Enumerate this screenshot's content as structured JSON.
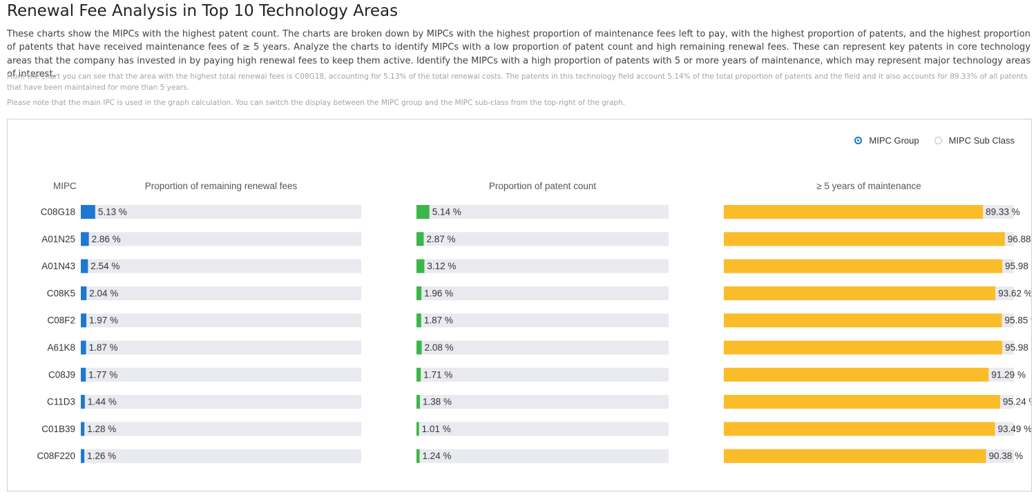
{
  "page": {
    "title": "Renewal Fee Analysis in Top 10 Technology Areas",
    "description": "These charts show the MIPCs with the highest patent count. The charts are broken down by MIPCs with the highest proportion of maintenance fees left to pay, with the highest proportion of patents, and the highest proportion of patents that have received maintenance fees of ≥ 5 years. Analyze the charts to identify MIPCs with a low proportion of patent count and high remaining renewal fees. These can represent key patents in core technology areas that the company has invested in by paying high renewal fees to keep them active. Identify the MIPCs with a high proportion of patents with 5 or more years of maintenance, which may represent major technology areas of interest.",
    "note1": "From the chart you can see that the area with the highest total renewal fees is C08G18, accounting for 5.13% of the total renewal costs. The patents in this technology field account 5.14% of the total proportion of patents and the field and it also accounts for 89.33% of all patents that have been maintained for more than 5 years.",
    "note2": "Please note that the main IPC is used in the graph calculation. You can switch the display between the MIPC group and the MIPC sub-class from the top-right of the graph."
  },
  "toggle": {
    "options": [
      "MIPC Group",
      "MIPC Sub Class"
    ],
    "selected": "MIPC Group"
  },
  "chart_data": {
    "type": "bar",
    "orientation": "horizontal",
    "category_label": "MIPC",
    "categories": [
      "C08G18",
      "A01N25",
      "A01N43",
      "C08K5",
      "C08F2",
      "A61K8",
      "C08J9",
      "C11D3",
      "C01B39",
      "C08F220"
    ],
    "value_suffix": " %",
    "series": [
      {
        "name": "Proportion of remaining renewal fees",
        "color": "#1f77d4",
        "xlim": [
          0,
          100
        ],
        "values": [
          5.13,
          2.86,
          2.54,
          2.04,
          1.97,
          1.87,
          1.77,
          1.44,
          1.28,
          1.26
        ]
      },
      {
        "name": "Proportion of patent count",
        "color": "#3db649",
        "xlim": [
          0,
          100
        ],
        "values": [
          5.14,
          2.87,
          3.12,
          1.96,
          1.87,
          2.08,
          1.71,
          1.38,
          1.01,
          1.24
        ]
      },
      {
        "name": "≥ 5 years of maintenance",
        "color": "#fbbc2a",
        "xlim": [
          0,
          100
        ],
        "values": [
          89.33,
          96.88,
          95.98,
          93.62,
          95.85,
          95.98,
          91.29,
          95.24,
          93.49,
          90.38
        ]
      }
    ],
    "track_color": "#e9eaef"
  }
}
